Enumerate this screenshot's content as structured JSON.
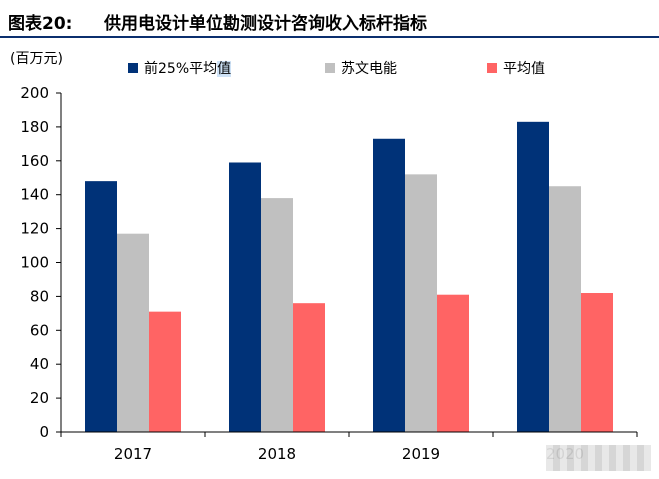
{
  "figure": {
    "number": "图表20:",
    "title": "供用电设计单位勘测设计咨询收入标杆指标"
  },
  "chart_data": {
    "type": "bar",
    "title": "",
    "unit_label": "(百万元)",
    "xlabel": "",
    "ylabel": "",
    "categories": [
      "2017",
      "2018",
      "2019",
      "2020"
    ],
    "ylim": [
      0,
      200
    ],
    "yticks": [
      0,
      20,
      40,
      60,
      80,
      100,
      120,
      140,
      160,
      180,
      200
    ],
    "grid": false,
    "legend_position": "top",
    "series": [
      {
        "name": "前25%平均值",
        "color": "#003278",
        "values": [
          148,
          159,
          173,
          183
        ]
      },
      {
        "name": "苏文电能",
        "color": "#c0c0c0",
        "values": [
          117,
          138,
          152,
          145
        ]
      },
      {
        "name": "平均值",
        "color": "#ff6464",
        "values": [
          71,
          76,
          81,
          82
        ]
      }
    ]
  }
}
